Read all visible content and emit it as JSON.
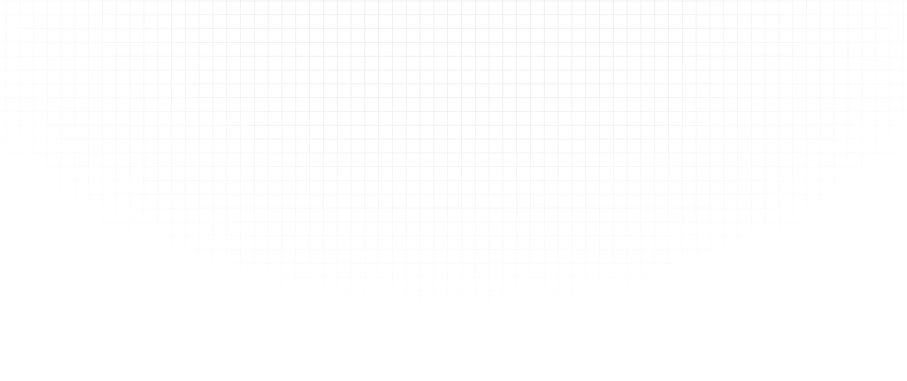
{
  "background": {
    "pattern": "grid",
    "grid_line_color": "#ececec",
    "base_color": "#ffffff"
  }
}
